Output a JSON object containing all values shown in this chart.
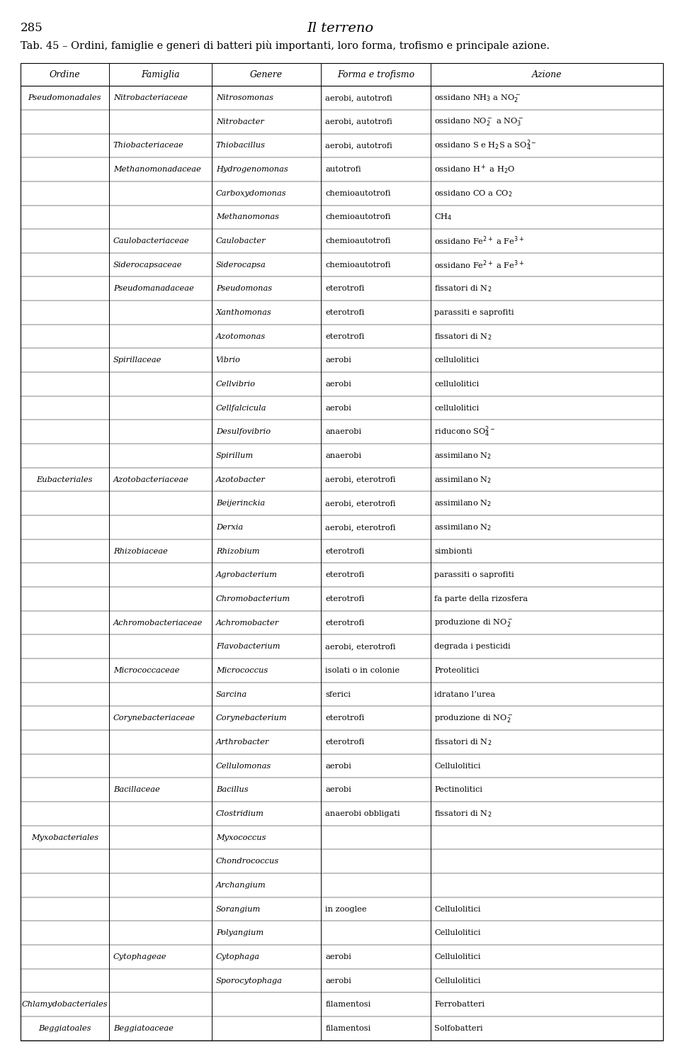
{
  "page_number": "285",
  "title": "Il terreno",
  "subtitle": "Tab. 45 – Ordini, famiglie e generi di batteri più importanti, loro forma, trofismo e principale azione.",
  "headers": [
    "Ordine",
    "Famiglia",
    "Genere",
    "Forma e trofismo",
    "Azione"
  ],
  "rows": [
    [
      "Pseudomonadales",
      "Nitrobacteriaceae",
      "Nitrosomonas",
      "aerobi, autotrofi",
      "ossidano NH$_3$ a NO$_2^-$"
    ],
    [
      "",
      "",
      "Nitrobacter",
      "aerobi, autotrofi",
      "ossidano NO$_2^-$ a NO$_3^-$"
    ],
    [
      "",
      "Thiobacteriaceae",
      "Thiobacillus",
      "aerobi, autotrofi",
      "ossidano S e H$_2$S a SO$_4^{2-}$"
    ],
    [
      "",
      "Methanomonadaceae",
      "Hydrogenomonas",
      "autotrofi",
      "ossidano H$^+$ a H$_2$O"
    ],
    [
      "",
      "",
      "Carboxydomonas",
      "chemioautotrofi",
      "ossidano CO a CO$_2$"
    ],
    [
      "",
      "",
      "Methanomonas",
      "chemioautotrofi",
      "CH$_4$"
    ],
    [
      "",
      "Caulobacteriaceae",
      "Caulobacter",
      "chemioautotrofi",
      "ossidano Fe$^{2+}$ a Fe$^{3+}$"
    ],
    [
      "",
      "Siderocapsaceae",
      "Siderocapsa",
      "chemioautotrofi",
      "ossidano Fe$^{2+}$ a Fe$^{3+}$"
    ],
    [
      "",
      "Pseudomanadaceae",
      "Pseudomonas",
      "eterotrofi",
      "fissatori di N$_2$"
    ],
    [
      "",
      "",
      "Xanthomonas",
      "eterotrofi",
      "parassiti e saprofiti"
    ],
    [
      "",
      "",
      "Azotomonas",
      "eterotrofi",
      "fissatori di N$_2$"
    ],
    [
      "",
      "Spirillaceae",
      "Vibrio",
      "aerobi",
      "cellulolitici"
    ],
    [
      "",
      "",
      "Cellvibrio",
      "aerobi",
      "cellulolitici"
    ],
    [
      "",
      "",
      "Cellfalcicula",
      "aerobi",
      "cellulolitici"
    ],
    [
      "",
      "",
      "Desulfovibrio",
      "anaerobi",
      "riducono SO$_4^{2-}$"
    ],
    [
      "",
      "",
      "Spirillum",
      "anaerobi",
      "assimilano N$_2$"
    ],
    [
      "Eubacteriales",
      "Azotobacteriaceae",
      "Azotobacter",
      "aerobi, eterotrofi",
      "assimilano N$_2$"
    ],
    [
      "",
      "",
      "Beijerinckia",
      "aerobi, eterotrofi",
      "assimilano N$_2$"
    ],
    [
      "",
      "",
      "Derxia",
      "aerobi, eterotrofi",
      "assimilano N$_2$"
    ],
    [
      "",
      "Rhizobiaceae",
      "Rhizobium",
      "eterotrofi",
      "simbionti"
    ],
    [
      "",
      "",
      "Agrobacterium",
      "eterotrofi",
      "parassiti o saprofiti"
    ],
    [
      "",
      "",
      "Chromobacterium",
      "eterotrofi",
      "fa parte della rizosfera"
    ],
    [
      "",
      "Achromobacteriaceae",
      "Achromobacter",
      "eterotrofi",
      "produzione di NO$_2^-$"
    ],
    [
      "",
      "",
      "Flavobacterium",
      "aerobi, eterotrofi",
      "degrada i pesticidi"
    ],
    [
      "",
      "Micrococcaceae",
      "Micrococcus",
      "isolati o in colonie",
      "Proteolitici"
    ],
    [
      "",
      "",
      "Sarcina",
      "sferici",
      "idratano l’urea"
    ],
    [
      "",
      "Corynebacteriaceae",
      "Corynebacterium",
      "eterotrofi",
      "produzione di NO$_2^-$"
    ],
    [
      "",
      "",
      "Arthrobacter",
      "eterotrofi",
      "fissatori di N$_2$"
    ],
    [
      "",
      "",
      "Cellulomonas",
      "aerobi",
      "Cellulolitici"
    ],
    [
      "",
      "Bacillaceae",
      "Bacillus",
      "aerobi",
      "Pectinolitici"
    ],
    [
      "",
      "",
      "Clostridium",
      "anaerobi obbligati",
      "fissatori di N$_2$"
    ],
    [
      "Myxobacteriales",
      "",
      "Myxococcus",
      "",
      ""
    ],
    [
      "",
      "",
      "Chondrococcus",
      "",
      ""
    ],
    [
      "",
      "",
      "Archangium",
      "",
      ""
    ],
    [
      "",
      "",
      "Sorangium",
      "in zooglee",
      "Cellulolitici"
    ],
    [
      "",
      "",
      "Polyangium",
      "",
      "Cellulolitici"
    ],
    [
      "",
      "Cytophageae",
      "Cytophaga",
      "aerobi",
      "Cellulolitici"
    ],
    [
      "",
      "",
      "Sporocytophaga",
      "aerobi",
      "Cellulolitici"
    ],
    [
      "Chlamydobacteriales",
      "",
      "",
      "filamentosi",
      "Ferrobatteri"
    ],
    [
      "Beggiatoales",
      "Beggiatoaceae",
      "",
      "filamentosi",
      "Solfobatteri"
    ]
  ],
  "background_color": "#ffffff",
  "line_color": "#000000",
  "text_color": "#000000",
  "header_fontsize": 9.0,
  "body_fontsize": 8.2,
  "title_fontsize": 14,
  "pagenum_fontsize": 12,
  "subtitle_fontsize": 10.5
}
